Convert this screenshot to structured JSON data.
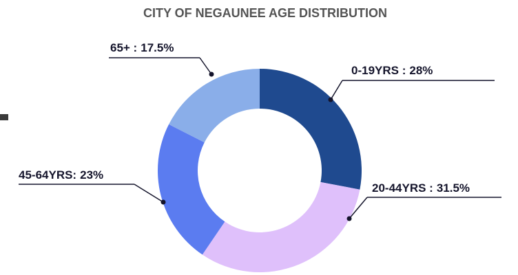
{
  "chart_data": {
    "type": "donut",
    "title": "CITY OF NEGAUNEE AGE DISTRIBUTION",
    "categories": [
      "0-19YRS :",
      "20-44YRS :",
      "45-64YRS:",
      "65+ :"
    ],
    "values": [
      28,
      31.5,
      23,
      17.5
    ],
    "value_labels": [
      "28%",
      "31.5%",
      "23%",
      "17.5%"
    ],
    "colors": [
      "#1f4a8f",
      "#dfc0fb",
      "#5b7cf0",
      "#8aaee9"
    ]
  }
}
